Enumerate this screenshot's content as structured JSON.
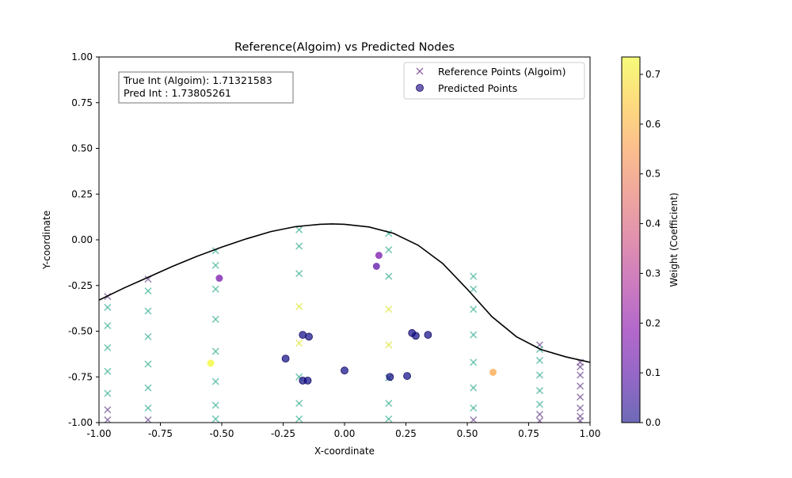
{
  "chart_data": {
    "type": "scatter",
    "title": "Reference(Algoim) vs Predicted Nodes",
    "xlabel": "X-coordinate",
    "ylabel": "Y-coordinate",
    "xlim": [
      -1.0,
      1.0
    ],
    "ylim": [
      -1.0,
      1.0
    ],
    "xticks": [
      "-1.00",
      "-0.75",
      "-0.50",
      "-0.25",
      "0.00",
      "0.25",
      "0.50",
      "0.75",
      "1.00"
    ],
    "yticks": [
      "-1.00",
      "-0.75",
      "-0.50",
      "-0.25",
      "0.00",
      "0.25",
      "0.50",
      "0.75",
      "1.00"
    ],
    "grid": false,
    "legend": {
      "placement": "top-right",
      "entries": [
        "Reference Points (Algoim)",
        "Predicted Points"
      ]
    },
    "annotation": {
      "line1": "True Int (Algoim): 1.71321583",
      "line2": "Pred Int : 1.73805261"
    },
    "colorbar": {
      "label": "Weight (Coefficient)",
      "min": 0.0,
      "max": 0.735,
      "colormap": "plasma",
      "ticks": [
        "0.0",
        "0.1",
        "0.2",
        "0.3",
        "0.4",
        "0.5",
        "0.6",
        "0.7"
      ]
    },
    "boundary_curve": {
      "x": [
        -1.0,
        -0.9,
        -0.8,
        -0.7,
        -0.6,
        -0.5,
        -0.4,
        -0.3,
        -0.2,
        -0.1,
        -0.05,
        0.0,
        0.1,
        0.2,
        0.3,
        0.4,
        0.5,
        0.6,
        0.7,
        0.8,
        0.9,
        1.0
      ],
      "y": [
        -0.33,
        -0.265,
        -0.205,
        -0.145,
        -0.09,
        -0.04,
        0.005,
        0.045,
        0.072,
        0.085,
        0.087,
        0.085,
        0.07,
        0.035,
        -0.03,
        -0.13,
        -0.27,
        -0.42,
        -0.53,
        -0.6,
        -0.64,
        -0.67
      ]
    },
    "series": [
      {
        "name": "Reference Points (Algoim)",
        "marker": "x",
        "points": [
          {
            "x": -0.965,
            "y": -0.31,
            "w": 0.06
          },
          {
            "x": -0.965,
            "y": -0.37,
            "w": 0.03
          },
          {
            "x": -0.965,
            "y": -0.47,
            "w": 0.03
          },
          {
            "x": -0.965,
            "y": -0.59,
            "w": 0.03
          },
          {
            "x": -0.965,
            "y": -0.72,
            "w": 0.03
          },
          {
            "x": -0.965,
            "y": -0.84,
            "w": 0.03
          },
          {
            "x": -0.965,
            "y": -0.93,
            "w": 0.04
          },
          {
            "x": -0.965,
            "y": -0.985,
            "w": 0.05
          },
          {
            "x": -0.8,
            "y": -0.215,
            "w": 0.08
          },
          {
            "x": -0.8,
            "y": -0.28,
            "w": 0.01
          },
          {
            "x": -0.8,
            "y": -0.39,
            "w": 0.01
          },
          {
            "x": -0.8,
            "y": -0.53,
            "w": 0.01
          },
          {
            "x": -0.8,
            "y": -0.68,
            "w": 0.01
          },
          {
            "x": -0.8,
            "y": -0.81,
            "w": 0.01
          },
          {
            "x": -0.8,
            "y": -0.92,
            "w": 0.02
          },
          {
            "x": -0.8,
            "y": -0.985,
            "w": 0.05
          },
          {
            "x": -0.525,
            "y": -0.06,
            "w": 0.02
          },
          {
            "x": -0.525,
            "y": -0.14,
            "w": 0.01
          },
          {
            "x": -0.525,
            "y": -0.27,
            "w": 0.01
          },
          {
            "x": -0.525,
            "y": -0.435,
            "w": 0.01
          },
          {
            "x": -0.525,
            "y": -0.61,
            "w": 0.01
          },
          {
            "x": -0.525,
            "y": -0.775,
            "w": 0.01
          },
          {
            "x": -0.525,
            "y": -0.905,
            "w": 0.01
          },
          {
            "x": -0.525,
            "y": -0.98,
            "w": 0.02
          },
          {
            "x": -0.185,
            "y": 0.055,
            "w": 0.01
          },
          {
            "x": -0.185,
            "y": -0.035,
            "w": 0.01
          },
          {
            "x": -0.185,
            "y": -0.185,
            "w": 0.01
          },
          {
            "x": -0.185,
            "y": -0.365,
            "w": 0.73
          },
          {
            "x": -0.185,
            "y": -0.565,
            "w": 0.73
          },
          {
            "x": -0.185,
            "y": -0.75,
            "w": 0.01
          },
          {
            "x": -0.185,
            "y": -0.895,
            "w": 0.01
          },
          {
            "x": -0.185,
            "y": -0.98,
            "w": 0.01
          },
          {
            "x": 0.18,
            "y": 0.035,
            "w": 0.01
          },
          {
            "x": 0.18,
            "y": -0.055,
            "w": 0.01
          },
          {
            "x": 0.18,
            "y": -0.2,
            "w": 0.01
          },
          {
            "x": 0.18,
            "y": -0.38,
            "w": 0.73
          },
          {
            "x": 0.18,
            "y": -0.575,
            "w": 0.73
          },
          {
            "x": 0.18,
            "y": -0.755,
            "w": 0.01
          },
          {
            "x": 0.18,
            "y": -0.895,
            "w": 0.01
          },
          {
            "x": 0.18,
            "y": -0.98,
            "w": 0.01
          },
          {
            "x": 0.525,
            "y": -0.2,
            "w": 0.01
          },
          {
            "x": 0.525,
            "y": -0.27,
            "w": 0.01
          },
          {
            "x": 0.525,
            "y": -0.38,
            "w": 0.01
          },
          {
            "x": 0.525,
            "y": -0.52,
            "w": 0.01
          },
          {
            "x": 0.525,
            "y": -0.67,
            "w": 0.01
          },
          {
            "x": 0.525,
            "y": -0.81,
            "w": 0.01
          },
          {
            "x": 0.525,
            "y": -0.92,
            "w": 0.02
          },
          {
            "x": 0.525,
            "y": -0.985,
            "w": 0.05
          },
          {
            "x": 0.795,
            "y": -0.575,
            "w": 0.06
          },
          {
            "x": 0.795,
            "y": -0.6,
            "w": 0.03
          },
          {
            "x": 0.795,
            "y": -0.66,
            "w": 0.03
          },
          {
            "x": 0.795,
            "y": -0.74,
            "w": 0.03
          },
          {
            "x": 0.795,
            "y": -0.825,
            "w": 0.03
          },
          {
            "x": 0.795,
            "y": -0.9,
            "w": 0.03
          },
          {
            "x": 0.795,
            "y": -0.955,
            "w": 0.04
          },
          {
            "x": 0.795,
            "y": -0.99,
            "w": 0.05
          },
          {
            "x": 0.96,
            "y": -0.67,
            "w": 0.06
          },
          {
            "x": 0.96,
            "y": -0.695,
            "w": 0.05
          },
          {
            "x": 0.96,
            "y": -0.74,
            "w": 0.05
          },
          {
            "x": 0.96,
            "y": -0.8,
            "w": 0.05
          },
          {
            "x": 0.96,
            "y": -0.86,
            "w": 0.05
          },
          {
            "x": 0.96,
            "y": -0.92,
            "w": 0.05
          },
          {
            "x": 0.96,
            "y": -0.965,
            "w": 0.06
          },
          {
            "x": 0.96,
            "y": -0.99,
            "w": 0.07
          }
        ]
      },
      {
        "name": "Predicted Points",
        "marker": "circle",
        "points": [
          {
            "x": -0.51,
            "y": -0.21,
            "w": 0.15
          },
          {
            "x": -0.545,
            "y": -0.675,
            "w": 0.73
          },
          {
            "x": -0.24,
            "y": -0.65,
            "w": 0.0
          },
          {
            "x": -0.17,
            "y": -0.52,
            "w": 0.0
          },
          {
            "x": -0.145,
            "y": -0.53,
            "w": 0.0
          },
          {
            "x": -0.17,
            "y": -0.77,
            "w": 0.0
          },
          {
            "x": -0.15,
            "y": -0.77,
            "w": 0.0
          },
          {
            "x": 0.0,
            "y": -0.715,
            "w": 0.0
          },
          {
            "x": 0.14,
            "y": -0.085,
            "w": 0.15
          },
          {
            "x": 0.13,
            "y": -0.145,
            "w": 0.1
          },
          {
            "x": 0.185,
            "y": -0.75,
            "w": 0.0
          },
          {
            "x": 0.255,
            "y": -0.745,
            "w": 0.0
          },
          {
            "x": 0.275,
            "y": -0.51,
            "w": 0.0
          },
          {
            "x": 0.29,
            "y": -0.525,
            "w": 0.0
          },
          {
            "x": 0.34,
            "y": -0.52,
            "w": 0.0
          },
          {
            "x": 0.605,
            "y": -0.725,
            "w": 0.57
          }
        ]
      }
    ]
  }
}
